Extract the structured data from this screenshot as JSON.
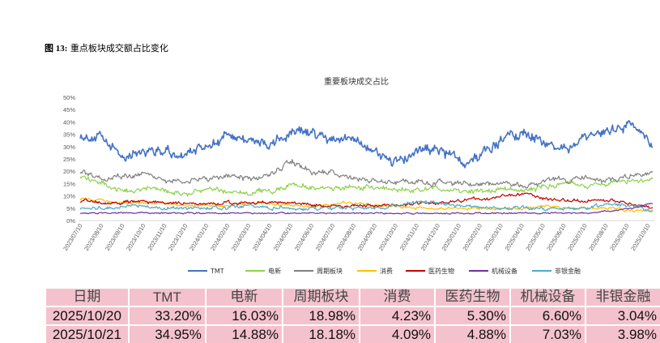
{
  "figure": {
    "number_label": "图 13:",
    "caption": "重点板块成交额占比变化"
  },
  "chart_data": {
    "type": "line",
    "title": "重要板块成交占比",
    "y_ticks": [
      "0%",
      "5%",
      "10%",
      "15%",
      "20%",
      "25%",
      "30%",
      "35%",
      "40%",
      "45%",
      "50%"
    ],
    "ylim": [
      0,
      50
    ],
    "x_ticks": [
      "2023/07/10",
      "2023/08/10",
      "2023/09/10",
      "2023/10/10",
      "2023/11/10",
      "2023/12/10",
      "2024/01/10",
      "2024/02/10",
      "2024/03/10",
      "2024/04/10",
      "2024/05/10",
      "2024/06/10",
      "2024/07/10",
      "2024/08/10",
      "2024/09/10",
      "2024/10/10",
      "2024/11/10",
      "2024/12/10",
      "2025/01/10",
      "2025/02/10",
      "2025/03/10",
      "2025/04/10",
      "2025/05/10",
      "2025/06/10",
      "2025/07/10",
      "2025/08/10",
      "2025/09/10",
      "2025/10/10"
    ],
    "series": [
      {
        "name": "TMT",
        "color": "#4472c4",
        "values": [
          35,
          33,
          26,
          29,
          28,
          26,
          31,
          34,
          33,
          30,
          36,
          35,
          32,
          34,
          27,
          24,
          28,
          29,
          24,
          27,
          34,
          36,
          31,
          29,
          33,
          37,
          39,
          31
        ]
      },
      {
        "name": "电新",
        "color": "#8fd14f",
        "values": [
          18,
          15,
          12,
          13,
          12,
          11,
          13,
          12,
          11,
          12,
          15,
          13,
          13,
          14,
          13,
          13,
          12,
          13,
          12,
          12,
          13,
          12,
          14,
          15,
          14,
          15,
          16,
          16
        ]
      },
      {
        "name": "周期板块",
        "color": "#808080",
        "values": [
          20,
          17,
          18,
          19,
          16,
          16,
          17,
          18,
          17,
          19,
          24,
          19,
          19,
          17,
          16,
          16,
          16,
          15,
          15,
          15,
          15,
          14,
          17,
          16,
          17,
          17,
          18,
          19
        ]
      },
      {
        "name": "消费",
        "color": "#ffc000",
        "values": [
          9,
          8,
          7,
          7,
          7,
          6,
          6,
          6,
          7,
          7,
          6,
          6,
          7,
          7,
          6,
          6,
          5,
          5,
          5,
          5,
          5,
          5,
          6,
          5,
          5,
          5,
          4,
          4
        ]
      },
      {
        "name": "医药生物",
        "color": "#c00000",
        "values": [
          8,
          7,
          7,
          8,
          7,
          7,
          7,
          7,
          7,
          7,
          7,
          6,
          6,
          6,
          6,
          6,
          7,
          7,
          8,
          9,
          10,
          11,
          9,
          8,
          8,
          8,
          7,
          5
        ]
      },
      {
        "name": "机械设备",
        "color": "#7030a0",
        "values": [
          3,
          3,
          3,
          3,
          3,
          3,
          3,
          3,
          3,
          3,
          3,
          3,
          3,
          3,
          3,
          3,
          3,
          3,
          3,
          3,
          3,
          3,
          3,
          3,
          3,
          4,
          5,
          7
        ]
      },
      {
        "name": "非银金融",
        "color": "#4bacc6",
        "values": [
          5,
          5,
          6,
          6,
          5,
          5,
          5,
          5,
          6,
          5,
          5,
          5,
          5,
          5,
          5,
          6,
          8,
          7,
          6,
          5,
          5,
          5,
          5,
          5,
          5,
          7,
          6,
          4
        ]
      }
    ]
  },
  "table": {
    "headers": [
      "日期",
      "TMT",
      "电新",
      "周期板块",
      "消费",
      "医药生物",
      "机械设备",
      "非银金融"
    ],
    "rows": [
      [
        "2025/10/20",
        "33.20%",
        "16.03%",
        "18.98%",
        "4.23%",
        "5.30%",
        "6.60%",
        "3.04%"
      ],
      [
        "2025/10/21",
        "34.95%",
        "14.88%",
        "18.18%",
        "4.09%",
        "4.88%",
        "7.03%",
        "3.98%"
      ]
    ]
  }
}
